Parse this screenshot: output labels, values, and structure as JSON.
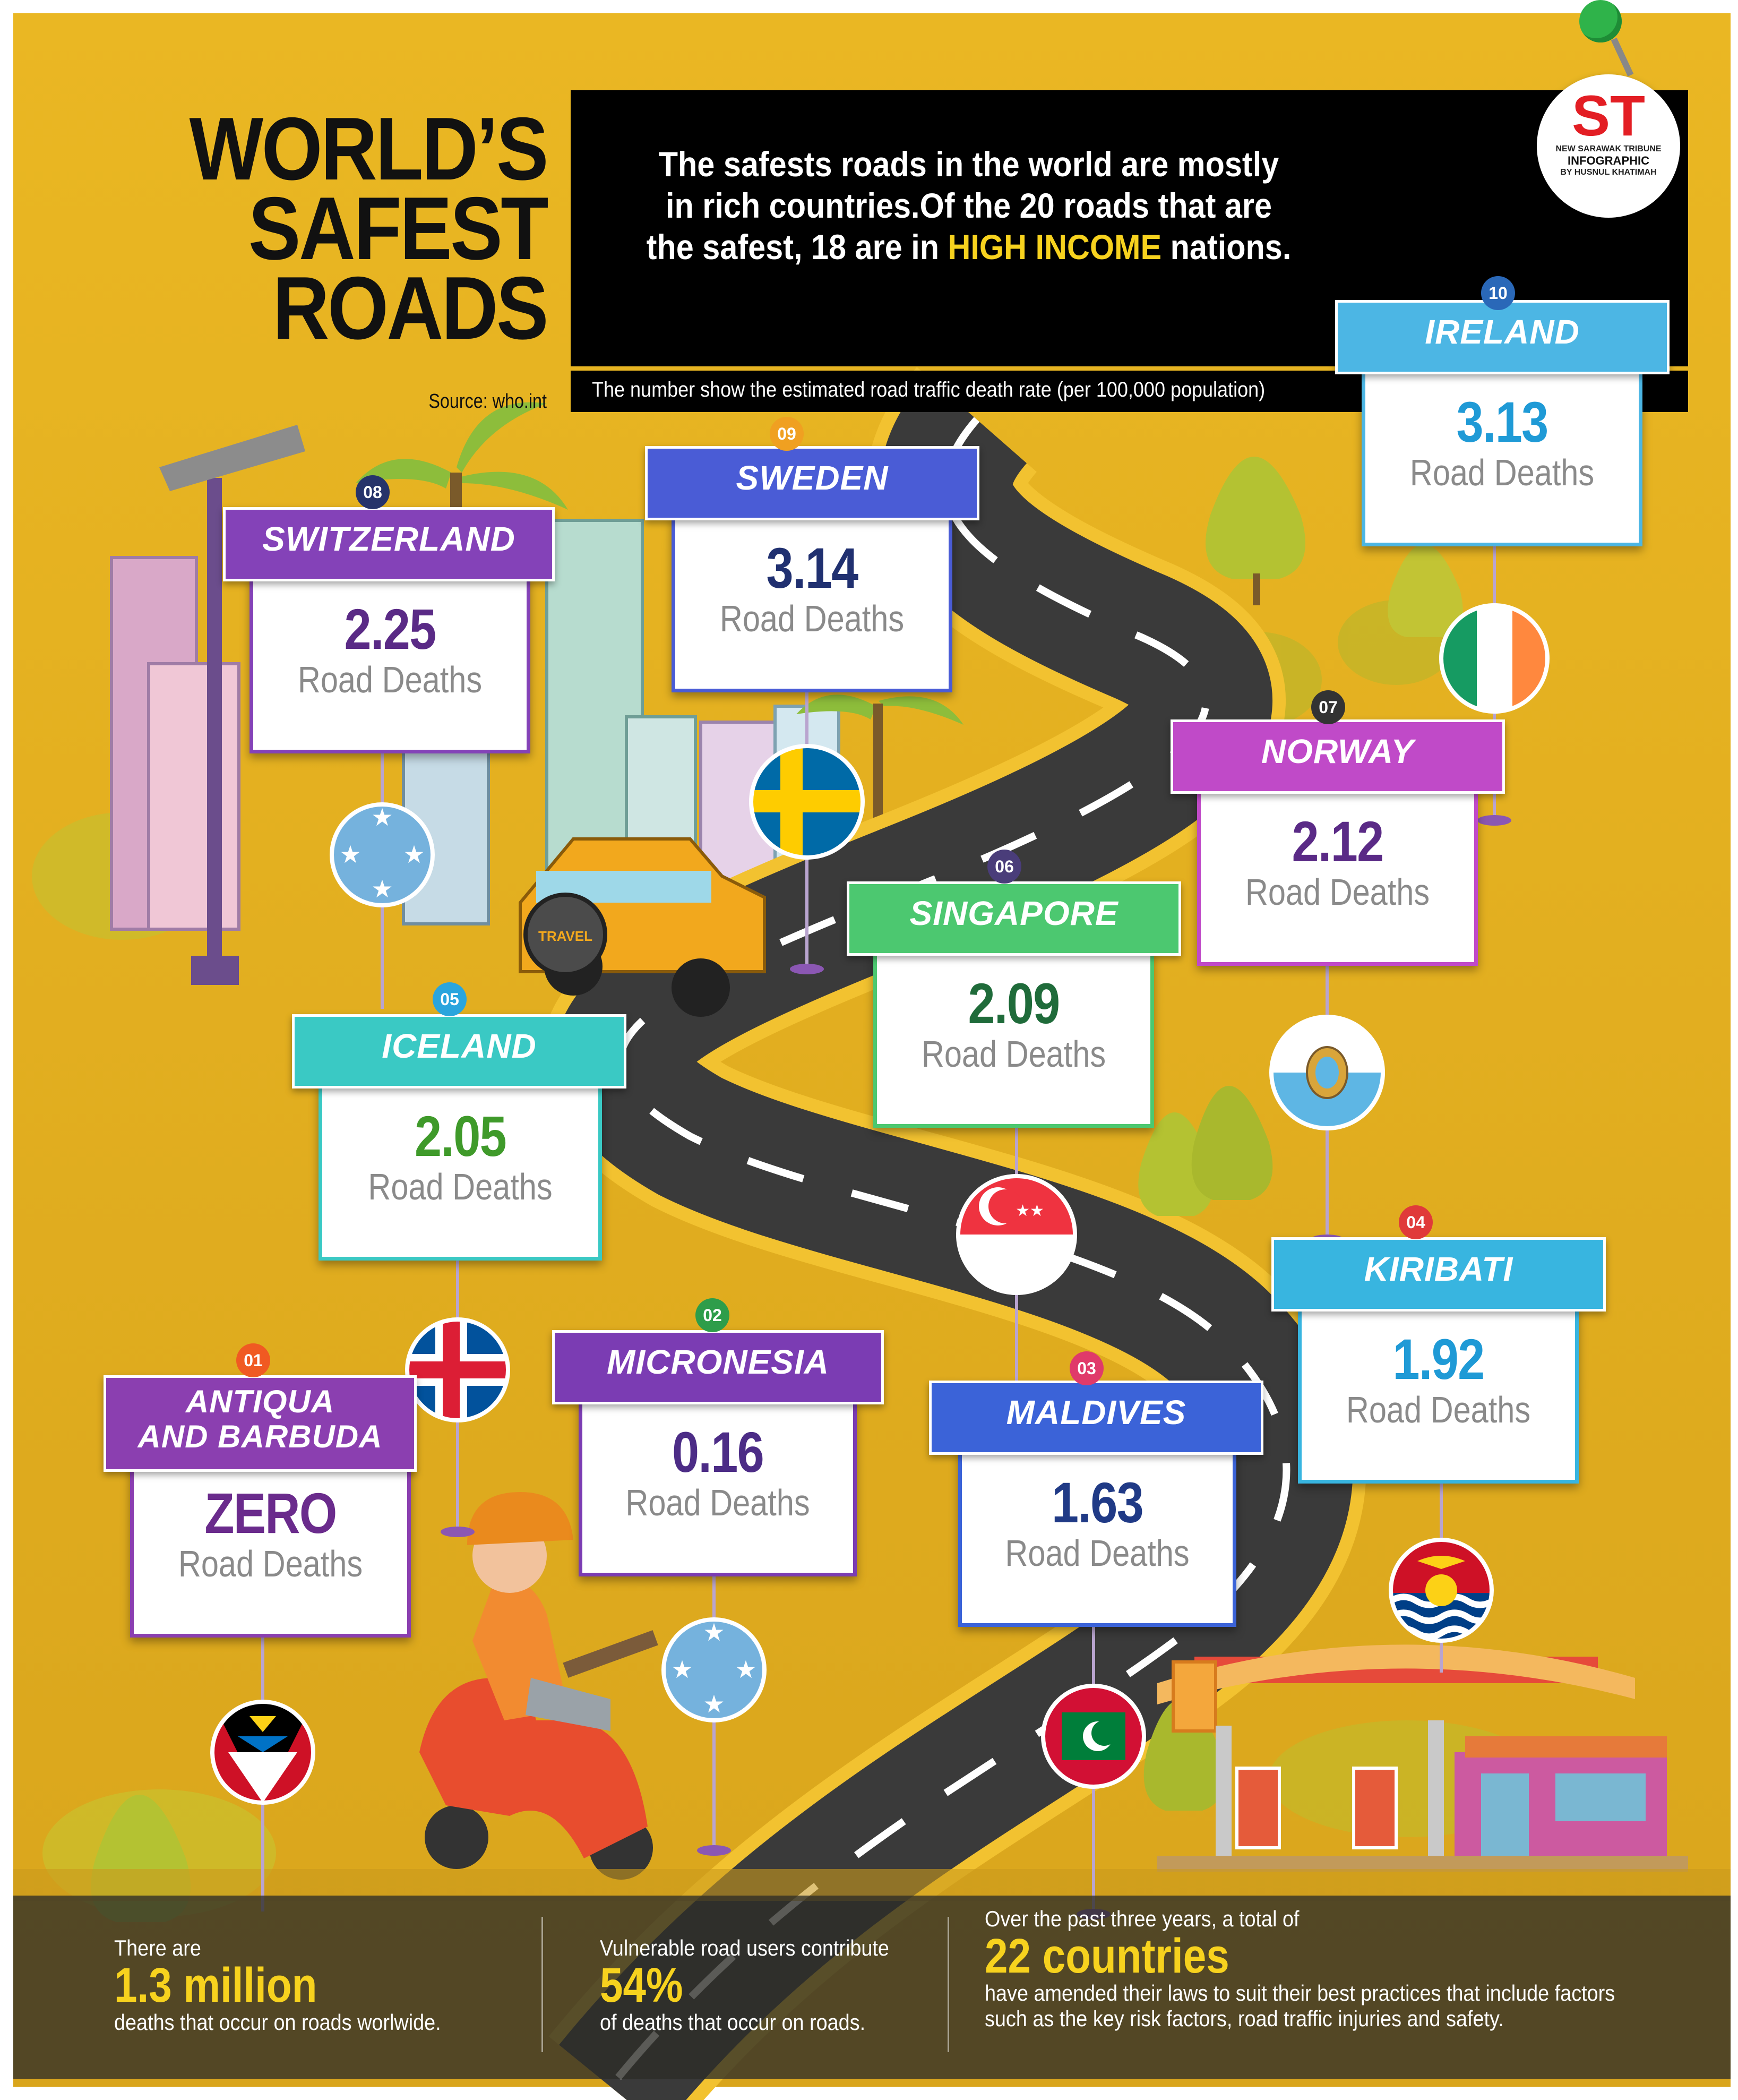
{
  "title": {
    "line1": "WORLD’S",
    "line2": "SAFEST",
    "line3": "ROADS",
    "source": "Source: who.int"
  },
  "intro": {
    "line1": "The safests roads in the world are mostly",
    "line2": "in rich countries.Of the 20 roads  that are",
    "line3_pre": "the safest, 18 are in ",
    "line3_highlight": "HIGH INCOME",
    "line3_post": " nations."
  },
  "note": "The number show the estimated road traffic death rate (per 100,000 population)",
  "logo": {
    "mark": "ST",
    "line1": "NEW SARAWAK TRIBUNE",
    "line2": "INFOGRAPHIC",
    "line3": "BY HUSNUL KHATIMAH"
  },
  "countries": [
    {
      "rank": "01",
      "name": "ANTIQUA",
      "name2": "AND BARBUDA",
      "value": "ZERO",
      "label": "Road Deaths",
      "color": "#8b3fb0",
      "flag": "antigua-flag-icon"
    },
    {
      "rank": "02",
      "name": "MICRONESIA",
      "value": "0.16",
      "label": "Road Deaths",
      "color": "#7b3cb3",
      "flag": "micronesia-flag-icon"
    },
    {
      "rank": "03",
      "name": "MALDIVES",
      "value": "1.63",
      "label": "Road Deaths",
      "color": "#3b63d8",
      "flag": "maldives-flag-icon"
    },
    {
      "rank": "04",
      "name": "KIRIBATI",
      "value": "1.92",
      "label": "Road Deaths",
      "color": "#38b5e0",
      "flag": "kiribati-flag-icon"
    },
    {
      "rank": "05",
      "name": "ICELAND",
      "value": "2.05",
      "label": "Road Deaths",
      "color": "#3ac9c4",
      "flag": "iceland-flag-icon"
    },
    {
      "rank": "06",
      "name": "SINGAPORE",
      "value": "2.09",
      "label": "Road Deaths",
      "color": "#4cc870",
      "flag": "singapore-flag-icon"
    },
    {
      "rank": "07",
      "name": "NORWAY",
      "value": "2.12",
      "label": "Road Deaths",
      "color": "#c04ac8",
      "flag": "san-marino-flag-icon"
    },
    {
      "rank": "08",
      "name": "SWITZERLAND",
      "value": "2.25",
      "label": "Road Deaths",
      "color": "#8442b8",
      "flag": "micronesia-flag-icon"
    },
    {
      "rank": "09",
      "name": "SWEDEN",
      "value": "3.14",
      "label": "Road Deaths",
      "color": "#4a5cd6",
      "flag": "sweden-flag-icon"
    },
    {
      "rank": "10",
      "name": "IRELAND",
      "value": "3.13",
      "label": "Road Deaths",
      "color": "#4cb6e4",
      "flag": "ireland-flag-icon"
    }
  ],
  "stats": [
    {
      "pre": "There are",
      "big": "1.3 million",
      "post": "deaths that occur on roads worlwide."
    },
    {
      "pre": "Vulnerable road users contribute",
      "big": "54%",
      "post": "of deaths that occur on roads."
    },
    {
      "pre": "Over the past three years, a total of",
      "big": "22 countries",
      "post": "have amended their laws to suit their best practices that include factors",
      "post2": "such as the key risk factors, road traffic injuries and safety."
    }
  ],
  "scene": {
    "spare_tire_text": "TRAVEL"
  },
  "colors": {
    "background": "#e8b521",
    "highlight": "#f7d21e",
    "road": "#3a3a3a"
  }
}
